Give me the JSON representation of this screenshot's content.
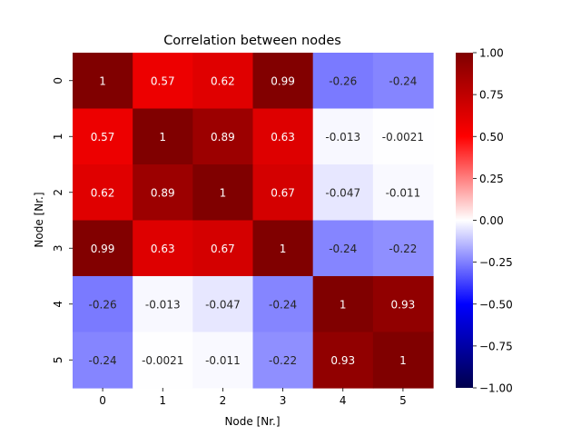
{
  "chart_data": {
    "type": "heatmap",
    "title": "Correlation between nodes",
    "xlabel": "Node [Nr.]",
    "ylabel": "Node [Nr.]",
    "x_categories": [
      "0",
      "1",
      "2",
      "3",
      "4",
      "5"
    ],
    "y_categories": [
      "0",
      "1",
      "2",
      "3",
      "4",
      "5"
    ],
    "values": [
      [
        1,
        0.57,
        0.62,
        0.99,
        -0.26,
        -0.24
      ],
      [
        0.57,
        1,
        0.89,
        0.63,
        -0.013,
        -0.0021
      ],
      [
        0.62,
        0.89,
        1,
        0.67,
        -0.047,
        -0.011
      ],
      [
        0.99,
        0.63,
        0.67,
        1,
        -0.24,
        -0.22
      ],
      [
        -0.26,
        -0.013,
        -0.047,
        -0.24,
        1,
        0.93
      ],
      [
        -0.24,
        -0.0021,
        -0.011,
        -0.22,
        0.93,
        1
      ]
    ],
    "labels": [
      [
        "1",
        "0.57",
        "0.62",
        "0.99",
        "-0.26",
        "-0.24"
      ],
      [
        "0.57",
        "1",
        "0.89",
        "0.63",
        "-0.013",
        "-0.0021"
      ],
      [
        "0.62",
        "0.89",
        "1",
        "0.67",
        "-0.047",
        "-0.011"
      ],
      [
        "0.99",
        "0.63",
        "0.67",
        "1",
        "-0.24",
        "-0.22"
      ],
      [
        "-0.26",
        "-0.013",
        "-0.047",
        "-0.24",
        "1",
        "0.93"
      ],
      [
        "-0.24",
        "-0.0021",
        "-0.011",
        "-0.22",
        "0.93",
        "1"
      ]
    ],
    "colormap": "seismic",
    "vmin": -1,
    "vmax": 1,
    "colorbar_ticks": [
      1.0,
      0.75,
      0.5,
      0.25,
      0.0,
      -0.25,
      -0.5,
      -0.75,
      -1.0
    ],
    "colorbar_tick_labels": [
      "1.00",
      "0.75",
      "0.50",
      "0.25",
      "0.00",
      "−0.25",
      "−0.50",
      "−0.75",
      "−1.00"
    ]
  }
}
